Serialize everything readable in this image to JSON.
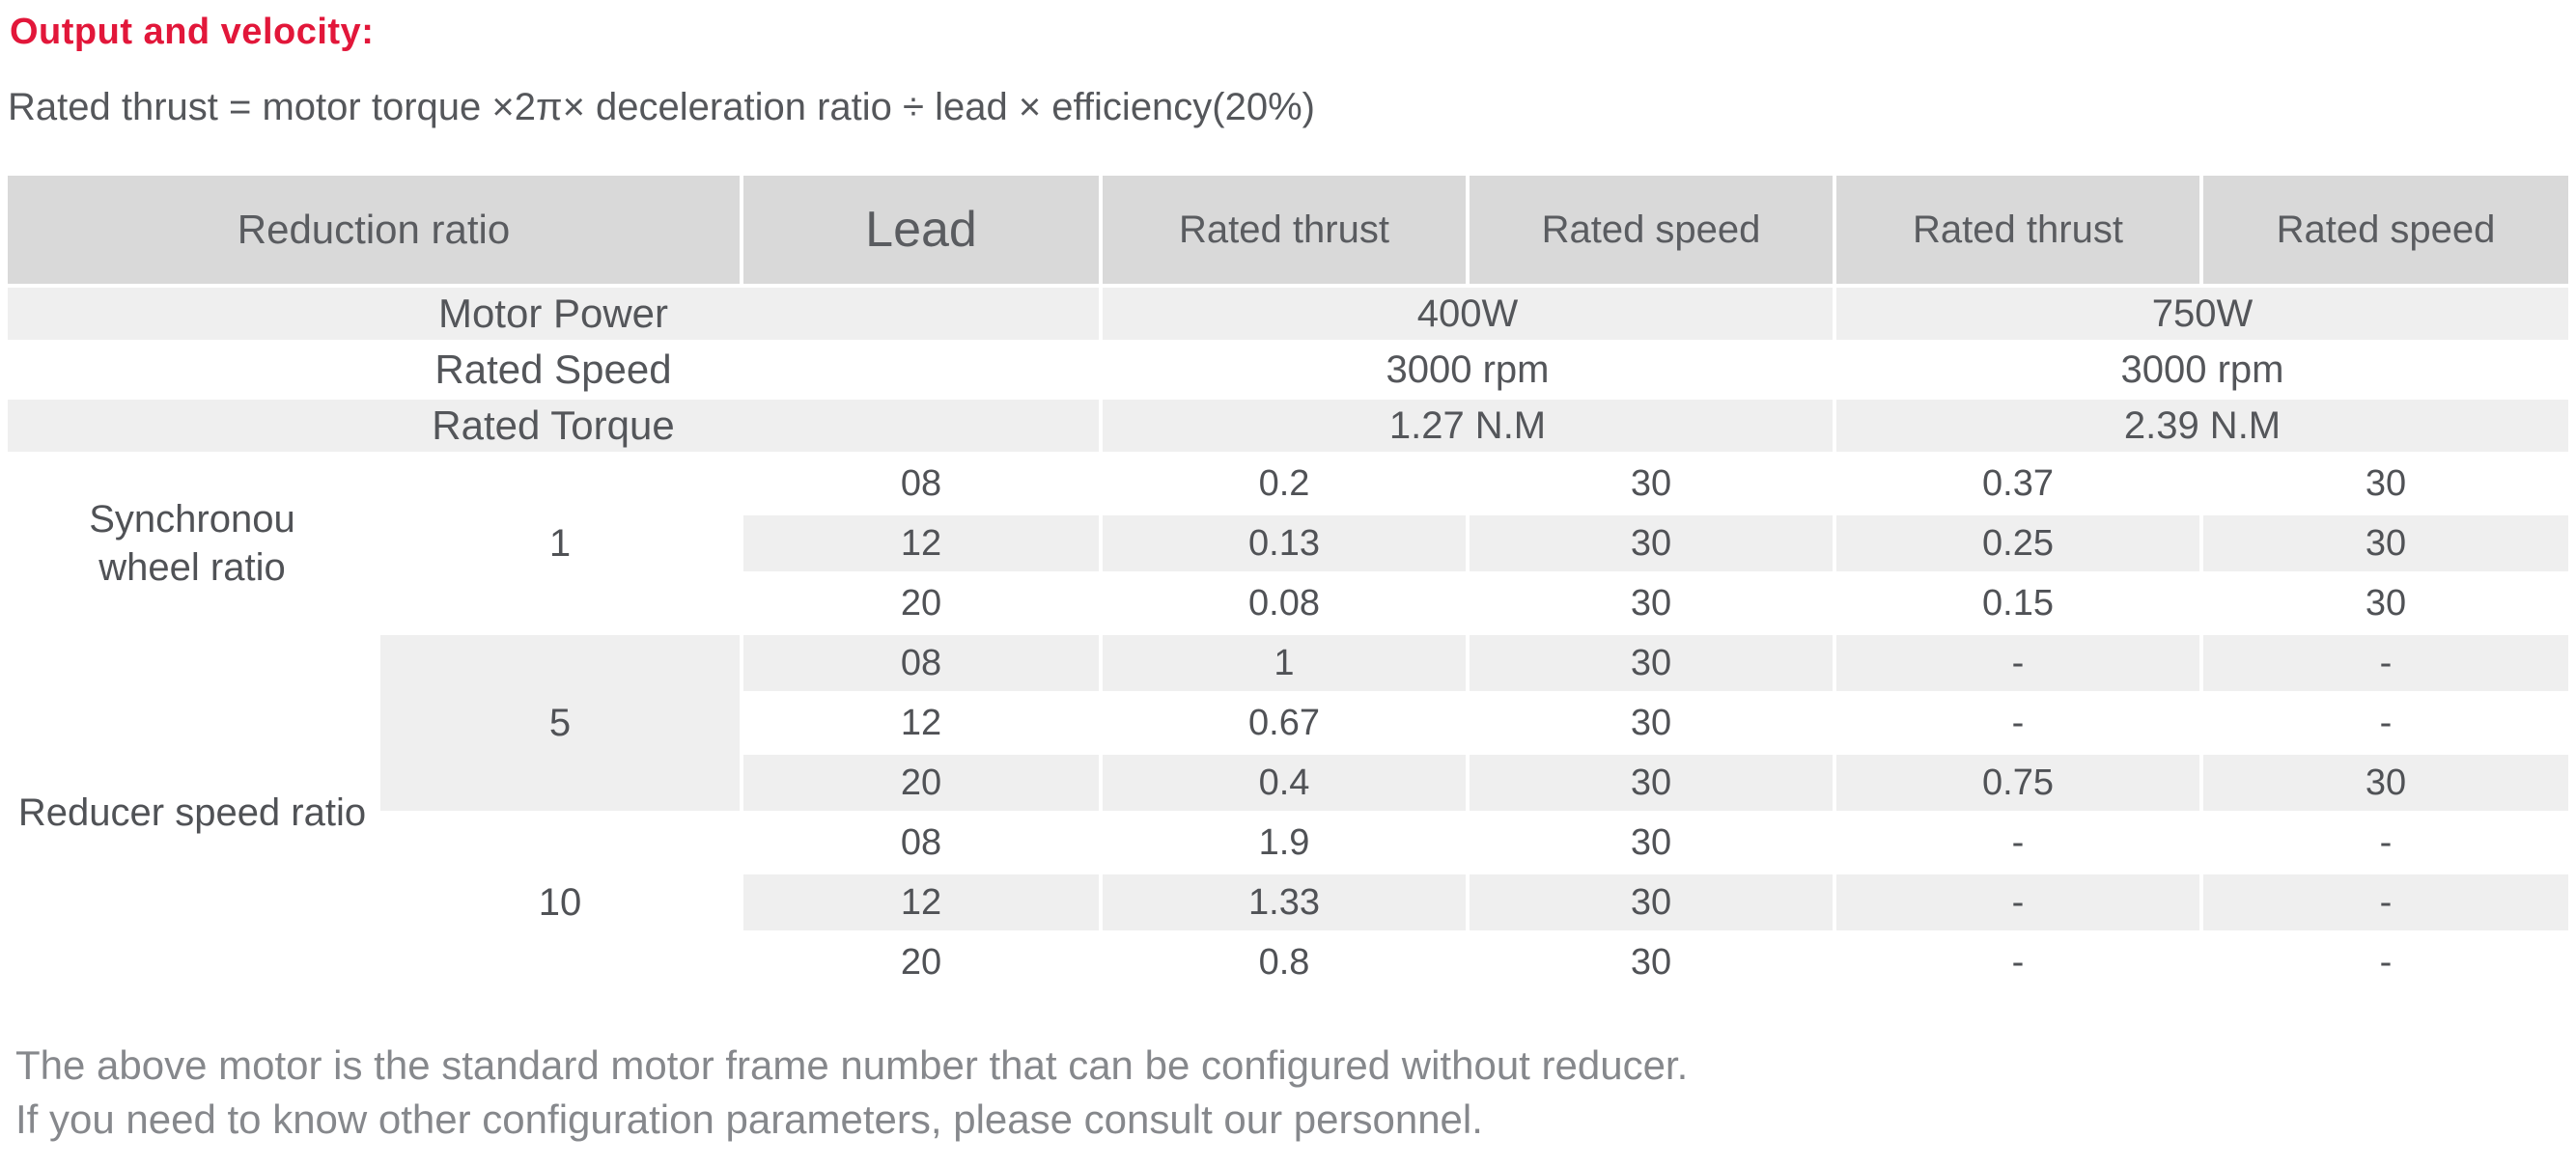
{
  "title": "Output and velocity:",
  "formula": "Rated thrust = motor torque ×2π× deceleration ratio ÷ lead × efficiency(20%)",
  "colors": {
    "accent_red": "#e2173a",
    "header_gray": "#d9d9d9",
    "stripe_gray": "#efefef",
    "text_dark": "#54565a",
    "note_gray": "#86888c"
  },
  "spec_table": {
    "info_rows": [
      {
        "label": "Motor Power",
        "v400": "400W",
        "v750": "750W"
      },
      {
        "label": "Rated Speed",
        "v400": "3000 rpm",
        "v750": "3000 rpm"
      },
      {
        "label": "Rated Torque",
        "v400": "1.27 N.M",
        "v750": "2.39 N.M"
      }
    ],
    "columns": {
      "reduction_ratio": "Reduction ratio",
      "lead": "Lead",
      "thrust_400": "Rated thrust",
      "speed_400": "Rated speed",
      "thrust_750": "Rated thrust",
      "speed_750": "Rated speed"
    },
    "sections": [
      {
        "label_lines": [
          "Synchronou",
          "wheel ratio"
        ],
        "groups": [
          {
            "ratio": "1",
            "rows": [
              {
                "lead": "08",
                "thrust_400": "0.2",
                "speed_400": "30",
                "thrust_750": "0.37",
                "speed_750": "30"
              },
              {
                "lead": "12",
                "thrust_400": "0.13",
                "speed_400": "30",
                "thrust_750": "0.25",
                "speed_750": "30"
              },
              {
                "lead": "20",
                "thrust_400": "0.08",
                "speed_400": "30",
                "thrust_750": "0.15",
                "speed_750": "30"
              }
            ]
          }
        ]
      },
      {
        "label_lines": [
          "Reducer speed ratio"
        ],
        "groups": [
          {
            "ratio": "5",
            "rows": [
              {
                "lead": "08",
                "thrust_400": "1",
                "speed_400": "30",
                "thrust_750": "-",
                "speed_750": "-"
              },
              {
                "lead": "12",
                "thrust_400": "0.67",
                "speed_400": "30",
                "thrust_750": "-",
                "speed_750": "-"
              },
              {
                "lead": "20",
                "thrust_400": "0.4",
                "speed_400": "30",
                "thrust_750": "0.75",
                "speed_750": "30"
              }
            ]
          },
          {
            "ratio": "10",
            "rows": [
              {
                "lead": "08",
                "thrust_400": "1.9",
                "speed_400": "30",
                "thrust_750": "-",
                "speed_750": "-"
              },
              {
                "lead": "12",
                "thrust_400": "1.33",
                "speed_400": "30",
                "thrust_750": "-",
                "speed_750": "-"
              },
              {
                "lead": "20",
                "thrust_400": "0.8",
                "speed_400": "30",
                "thrust_750": "-",
                "speed_750": "-"
              }
            ]
          }
        ]
      }
    ]
  },
  "notes": [
    "The above motor is the standard motor frame number that can be configured without reducer.",
    "If you need to know other configuration parameters, please consult our personnel."
  ]
}
